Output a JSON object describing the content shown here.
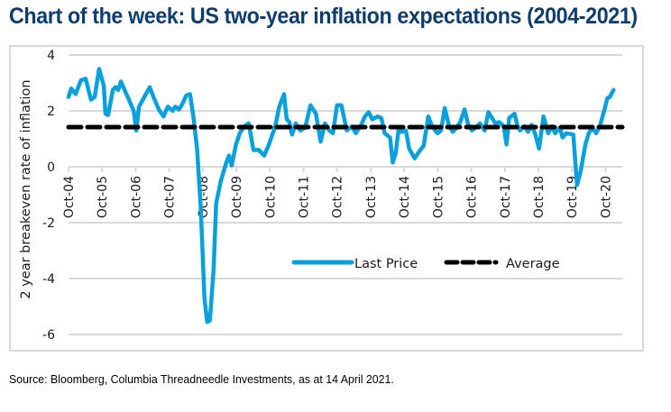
{
  "header": {
    "title": "Chart of the week: US two-year inflation expectations (2004-2021)"
  },
  "footer": {
    "source": "Source: Bloomberg, Columbia Threadneedle Investments, as at 14 April 2021."
  },
  "colors": {
    "title": "#0e3d6e",
    "last_price": "#0aa0dc",
    "average": "#000000",
    "grid": "#d9d9d9"
  },
  "chart_data": {
    "type": "line",
    "title": "Chart of the week: US two-year inflation expectations (2004-2021)",
    "xlabel": "",
    "ylabel": "2 year breakeven rate of inflation",
    "ylim": [
      -6,
      4
    ],
    "yticks": [
      4,
      2,
      0,
      -2,
      -4,
      -6
    ],
    "ytick_labels": [
      "4",
      "2",
      "0",
      "-2",
      "-4",
      "-6"
    ],
    "xlim": [
      2004.75,
      2021.25
    ],
    "xticks": [
      2004.75,
      2005.75,
      2006.75,
      2007.75,
      2008.75,
      2009.75,
      2010.75,
      2011.75,
      2012.75,
      2013.75,
      2014.75,
      2015.75,
      2016.75,
      2017.75,
      2018.75,
      2019.75,
      2020.75
    ],
    "xtick_labels": [
      "Oct-04",
      "Oct-05",
      "Oct-06",
      "Oct-07",
      "Oct-08",
      "Oct-09",
      "Oct-10",
      "Oct-11",
      "Oct-12",
      "Oct-13",
      "Oct-14",
      "Oct-15",
      "Oct-16",
      "Oct-17",
      "Oct-18",
      "Oct-19",
      "Oct-20"
    ],
    "grid": "horizontal",
    "legend_position": "center-right",
    "legend": [
      "Last Price",
      "Average"
    ],
    "series": [
      {
        "name": "Last Price",
        "style": "solid",
        "x": [
          2004.75,
          2004.83,
          2004.96,
          2005.12,
          2005.26,
          2005.42,
          2005.53,
          2005.66,
          2005.8,
          2005.85,
          2005.93,
          2006.07,
          2006.15,
          2006.23,
          2006.31,
          2006.42,
          2006.55,
          2006.69,
          2006.77,
          2006.85,
          2007.01,
          2007.17,
          2007.28,
          2007.44,
          2007.58,
          2007.71,
          2007.85,
          2007.93,
          2008.04,
          2008.12,
          2008.26,
          2008.37,
          2008.47,
          2008.58,
          2008.69,
          2008.8,
          2008.88,
          2008.96,
          2009.07,
          2009.15,
          2009.29,
          2009.45,
          2009.53,
          2009.61,
          2009.74,
          2009.85,
          2009.99,
          2010.12,
          2010.26,
          2010.42,
          2010.58,
          2010.72,
          2010.82,
          2010.9,
          2011.03,
          2011.17,
          2011.25,
          2011.33,
          2011.41,
          2011.52,
          2011.66,
          2011.8,
          2011.96,
          2012.12,
          2012.26,
          2012.39,
          2012.52,
          2012.63,
          2012.75,
          2012.88,
          2013.04,
          2013.2,
          2013.31,
          2013.47,
          2013.58,
          2013.69,
          2013.8,
          2013.96,
          2014.07,
          2014.17,
          2014.33,
          2014.41,
          2014.5,
          2014.58,
          2014.66,
          2014.8,
          2014.9,
          2015.06,
          2015.23,
          2015.33,
          2015.47,
          2015.58,
          2015.74,
          2015.85,
          2015.96,
          2016.09,
          2016.2,
          2016.31,
          2016.42,
          2016.55,
          2016.66,
          2016.77,
          2016.88,
          2017.01,
          2017.15,
          2017.26,
          2017.34,
          2017.47,
          2017.58,
          2017.72,
          2017.8,
          2017.88,
          2018.04,
          2018.12,
          2018.2,
          2018.34,
          2018.44,
          2018.55,
          2018.66,
          2018.77,
          2018.9,
          2019.04,
          2019.15,
          2019.25,
          2019.39,
          2019.47,
          2019.58,
          2019.79,
          2019.9,
          2020.01,
          2020.15,
          2020.25,
          2020.36,
          2020.47,
          2020.58,
          2020.72,
          2020.8,
          2020.88,
          2020.99
        ],
        "values": [
          2.5,
          2.8,
          2.6,
          3.1,
          3.15,
          2.4,
          2.5,
          3.5,
          2.9,
          1.9,
          1.85,
          2.75,
          2.85,
          2.75,
          3.05,
          2.75,
          2.4,
          2.0,
          1.3,
          2.15,
          2.5,
          2.85,
          2.5,
          2.05,
          1.8,
          2.15,
          2.0,
          2.15,
          2.05,
          2.2,
          2.55,
          2.6,
          1.8,
          0.65,
          -1.45,
          -4.7,
          -5.55,
          -5.5,
          -3.7,
          -1.3,
          -0.5,
          0.15,
          0.4,
          0.05,
          0.8,
          1.2,
          1.45,
          1.55,
          0.6,
          0.6,
          0.4,
          0.8,
          1.15,
          1.4,
          2.15,
          2.6,
          1.7,
          1.6,
          1.15,
          1.55,
          1.3,
          1.4,
          2.2,
          1.9,
          0.9,
          1.55,
          1.3,
          1.2,
          2.2,
          2.2,
          1.3,
          1.45,
          1.2,
          1.5,
          1.8,
          1.95,
          1.7,
          1.8,
          1.75,
          1.2,
          1.05,
          0.15,
          0.5,
          1.3,
          1.25,
          1.3,
          0.65,
          0.3,
          0.6,
          0.75,
          1.8,
          1.45,
          1.2,
          1.3,
          2.1,
          1.45,
          1.25,
          1.4,
          1.6,
          2.05,
          1.5,
          1.3,
          1.4,
          1.55,
          1.3,
          1.95,
          1.8,
          1.55,
          1.6,
          1.45,
          0.8,
          1.75,
          1.9,
          1.5,
          1.3,
          1.45,
          1.25,
          1.5,
          1.15,
          0.65,
          1.8,
          1.2,
          1.45,
          1.2,
          1.4,
          1.05,
          1.2,
          1.15,
          -0.65,
          -0.15,
          0.8,
          1.2,
          1.4,
          1.2,
          1.45,
          2.05,
          2.45,
          2.5,
          2.75
        ]
      },
      {
        "name": "Average",
        "style": "dashed",
        "x": [
          2004.75,
          2021.25
        ],
        "values": [
          1.42,
          1.42
        ]
      }
    ]
  }
}
